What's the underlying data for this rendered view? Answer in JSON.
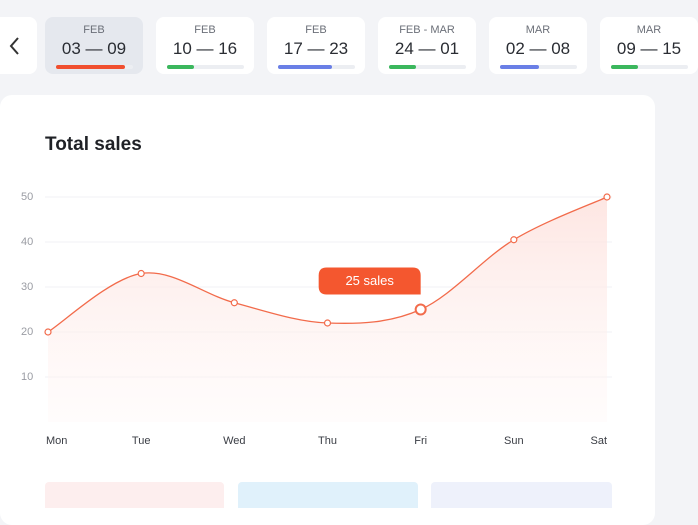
{
  "weeks": [
    {
      "month": "FEB",
      "range": "03 — 09",
      "progress": 90,
      "color": "#f04e2e",
      "selected": true
    },
    {
      "month": "FEB",
      "range": "10 — 16",
      "progress": 35,
      "color": "#3bb75d",
      "selected": false
    },
    {
      "month": "FEB",
      "range": "17 — 23",
      "progress": 70,
      "color": "#6a7fe6",
      "selected": false
    },
    {
      "month": "FEB - MAR",
      "range": "24 — 01",
      "progress": 35,
      "color": "#3bb75d",
      "selected": false
    },
    {
      "month": "MAR",
      "range": "02 — 08",
      "progress": 50,
      "color": "#6a7fe6",
      "selected": false
    },
    {
      "month": "MAR",
      "range": "09 — 15",
      "progress": 35,
      "color": "#3bb75d",
      "selected": false
    }
  ],
  "chart_data": {
    "type": "line",
    "title": "Total sales",
    "categories": [
      "Mon",
      "Tue",
      "Wed",
      "Thu",
      "Fri",
      "Sun",
      "Sat"
    ],
    "values": [
      20,
      33,
      26.5,
      22,
      25,
      40.5,
      50
    ],
    "value_labels": [
      null,
      null,
      null,
      null,
      "25 sales",
      null,
      null
    ],
    "color": "#f26b4b",
    "ylim": [
      0,
      50
    ],
    "yticks": [
      10,
      20,
      30,
      40,
      50
    ],
    "grid": true
  }
}
